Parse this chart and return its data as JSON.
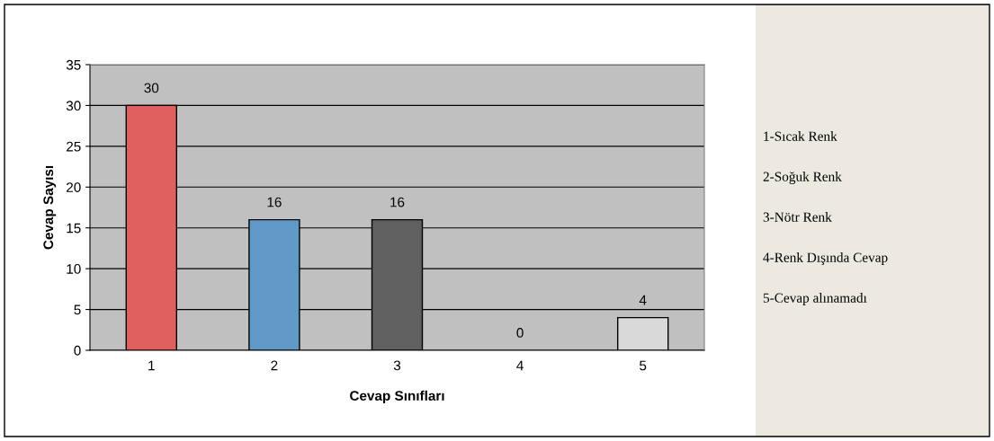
{
  "chart_data": {
    "type": "bar",
    "xlabel": "Cevap Sınıfları",
    "ylabel": "Cevap Sayısı",
    "categories": [
      "1",
      "2",
      "3",
      "4",
      "5"
    ],
    "values": [
      30,
      16,
      16,
      0,
      4
    ],
    "colors": [
      "#e06060",
      "#5f9ac6",
      "#606060",
      "#c0c0c0",
      "#d9d9d9"
    ],
    "ylim": [
      0,
      35
    ],
    "yticks": [
      0,
      5,
      10,
      15,
      20,
      25,
      30,
      35
    ],
    "grid": "y",
    "data_labels": true,
    "legend": false,
    "annotations": [
      "1-Sıcak Renk",
      "2-Soğuk Renk",
      "3-Nötr Renk",
      "4-Renk Dışında Cevap",
      "5-Cevap alınamadı"
    ]
  }
}
